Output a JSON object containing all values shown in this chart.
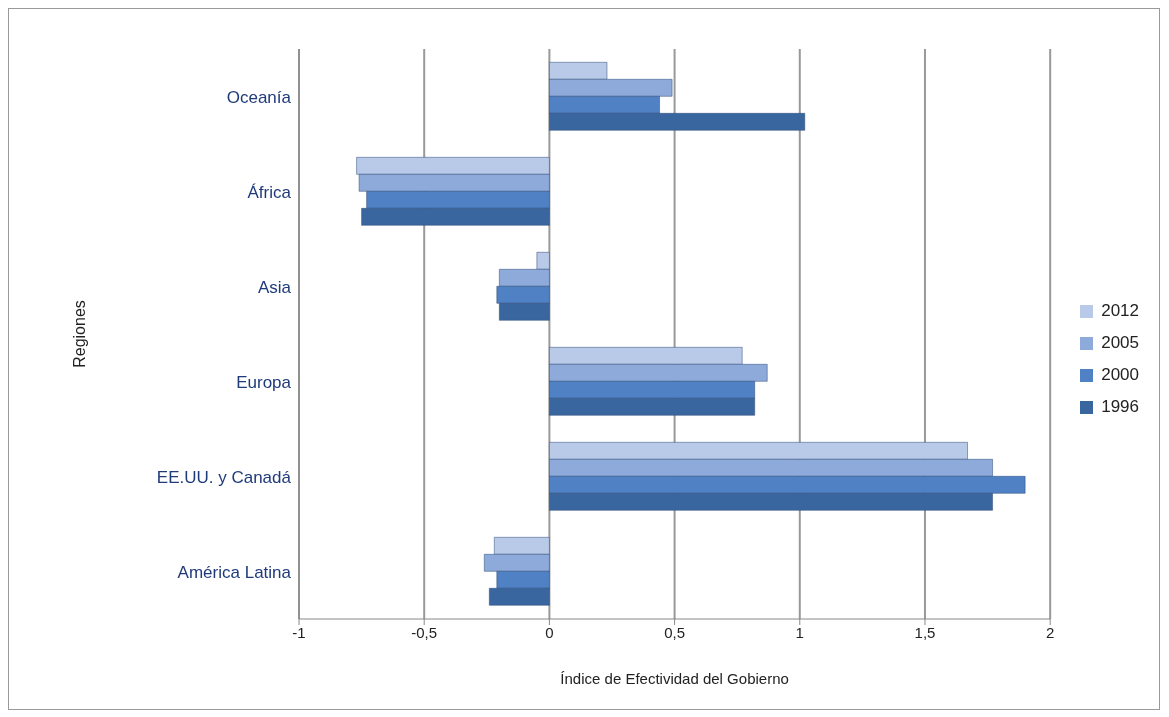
{
  "chart_data": {
    "type": "bar",
    "orientation": "horizontal",
    "xlabel": "Índice de Efectividad del Gobierno",
    "ylabel": "Regiones",
    "categories": [
      "Oceanía",
      "África",
      "Asia",
      "Europa",
      "EE.UU. y Canadá",
      "América Latina"
    ],
    "series": [
      {
        "name": "2012",
        "color": "#b9c9e8",
        "values": [
          0.23,
          -0.77,
          -0.05,
          0.77,
          1.67,
          -0.22
        ]
      },
      {
        "name": "2005",
        "color": "#8eaadb",
        "values": [
          0.49,
          -0.76,
          -0.2,
          0.87,
          1.77,
          -0.26
        ]
      },
      {
        "name": "2000",
        "color": "#4f81c4",
        "values": [
          0.44,
          -0.73,
          -0.21,
          0.82,
          1.9,
          -0.21
        ]
      },
      {
        "name": "1996",
        "color": "#3a66a0",
        "values": [
          1.02,
          -0.75,
          -0.2,
          0.82,
          1.77,
          -0.24
        ]
      }
    ],
    "xlim": [
      -1,
      2
    ],
    "xticks": [
      -1,
      {
        "value": -0.5,
        "label": "-0,5"
      },
      0,
      {
        "value": 0.5,
        "label": "0,5"
      },
      1,
      {
        "value": 1.5,
        "label": "1,5"
      },
      2
    ],
    "grid": "x",
    "legend": "right"
  }
}
